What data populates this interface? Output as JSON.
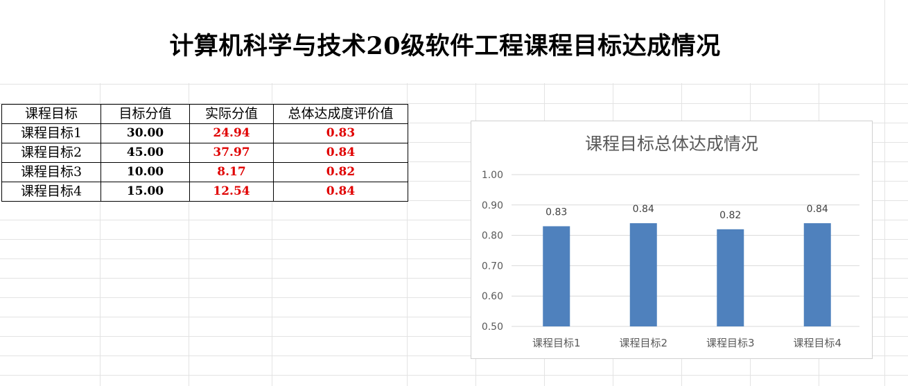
{
  "sheet": {
    "title": "计算机科学与技术20级软件工程课程目标达成情况"
  },
  "table": {
    "headers": [
      "课程目标",
      "目标分值",
      "实际分值",
      "总体达成度评价值"
    ],
    "rows": [
      {
        "goal": "课程目标1",
        "target": "30.00",
        "actual": "24.94",
        "achievement": "0.83"
      },
      {
        "goal": "课程目标2",
        "target": "45.00",
        "actual": "37.97",
        "achievement": "0.84"
      },
      {
        "goal": "课程目标3",
        "target": "10.00",
        "actual": "8.17",
        "achievement": "0.82"
      },
      {
        "goal": "课程目标4",
        "target": "15.00",
        "actual": "12.54",
        "achievement": "0.84"
      }
    ]
  },
  "colors": {
    "bar": "#4f81bd",
    "red_value": "#e00000",
    "gridline": "#d9d9d9"
  },
  "chart_data": {
    "type": "bar",
    "title": "课程目标总体达成情况",
    "categories": [
      "课程目标1",
      "课程目标2",
      "课程目标3",
      "课程目标4"
    ],
    "values": [
      0.83,
      0.84,
      0.82,
      0.84
    ],
    "data_labels": [
      "0.83",
      "0.84",
      "0.82",
      "0.84"
    ],
    "xlabel": "",
    "ylabel": "",
    "ylim": [
      0.5,
      1.0
    ],
    "yticks": [
      "0.50",
      "0.60",
      "0.70",
      "0.80",
      "0.90",
      "1.00"
    ],
    "grid": true,
    "legend": "none"
  }
}
